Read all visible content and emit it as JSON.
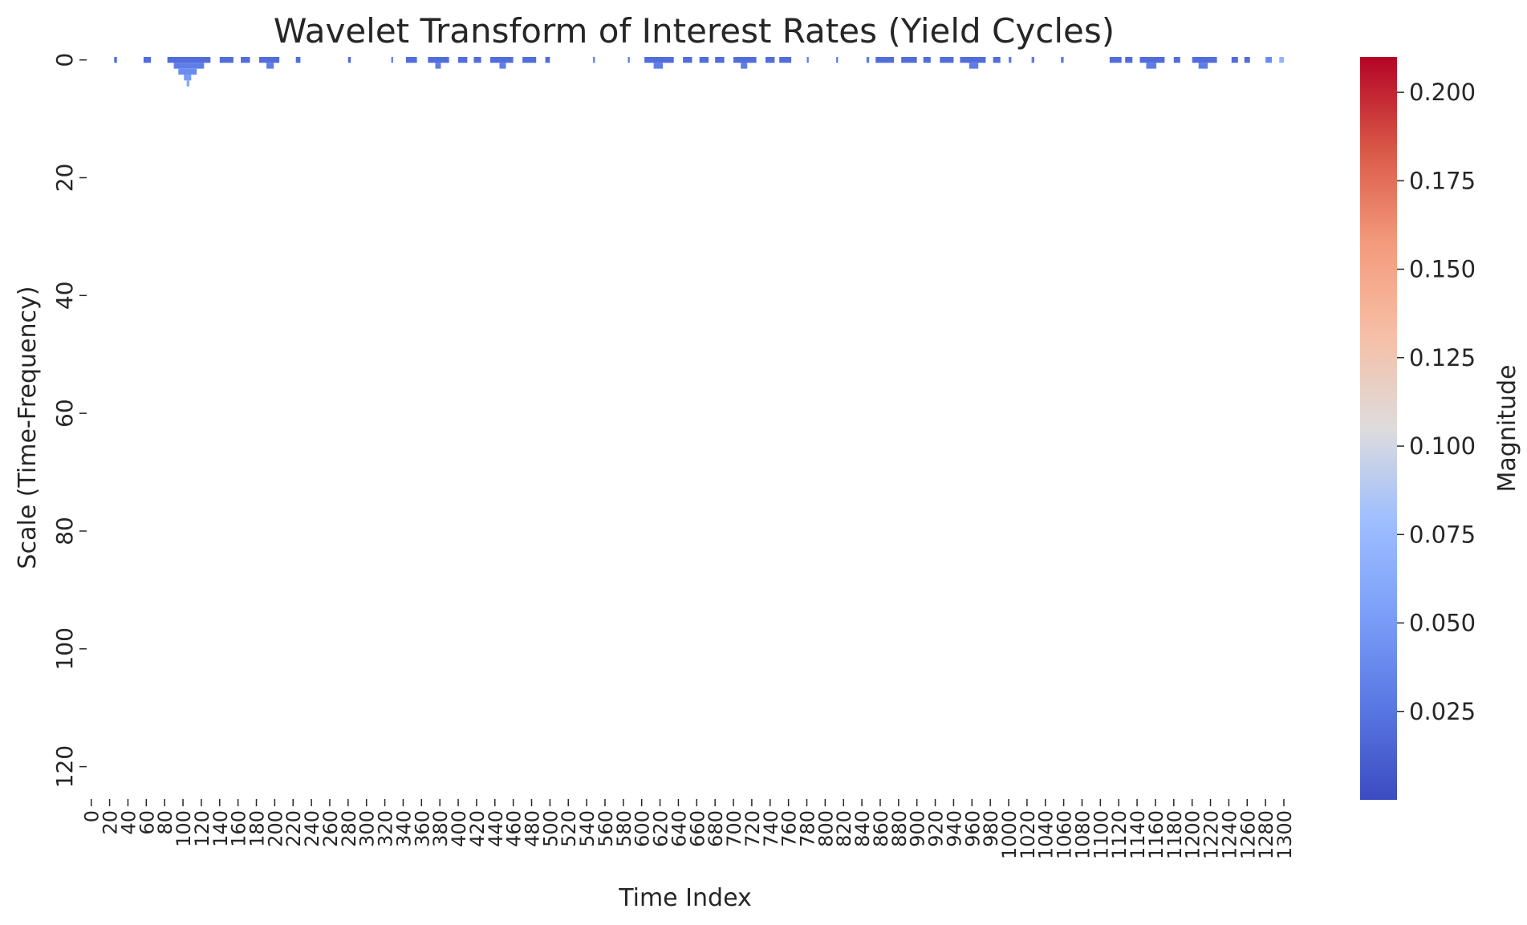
{
  "chart_data": {
    "type": "heatmap",
    "title": "Wavelet Transform of Interest Rates (Yield Cycles)",
    "xlabel": "Time Index",
    "ylabel": "Scale (Time-Frequency)",
    "colorbar_label": "Magnitude",
    "x_range": [
      0,
      1305
    ],
    "y_range": [
      0,
      126
    ],
    "x_tick_step": 20,
    "x_ticks": [
      0,
      20,
      40,
      60,
      80,
      100,
      120,
      140,
      160,
      180,
      200,
      220,
      240,
      260,
      280,
      300,
      320,
      340,
      360,
      380,
      400,
      420,
      440,
      460,
      480,
      500,
      520,
      540,
      560,
      580,
      600,
      620,
      640,
      660,
      680,
      700,
      720,
      740,
      760,
      780,
      800,
      820,
      840,
      860,
      880,
      900,
      920,
      940,
      960,
      980,
      1000,
      1020,
      1040,
      1060,
      1080,
      1100,
      1120,
      1140,
      1160,
      1180,
      1200,
      1220,
      1240,
      1260,
      1280,
      1300
    ],
    "y_ticks": [
      0,
      20,
      40,
      60,
      80,
      100,
      120
    ],
    "color_range": [
      0.0,
      0.21
    ],
    "colorbar_ticks": [
      0.025,
      0.05,
      0.075,
      0.1,
      0.125,
      0.15,
      0.175,
      0.2
    ],
    "colormap": "coolwarm",
    "cells": [
      {
        "x": [
          30,
          33
        ],
        "scale": 0,
        "value": 0.02
      },
      {
        "x": [
          62,
          70
        ],
        "scale": 0,
        "value": 0.02
      },
      {
        "x": [
          88,
          135
        ],
        "scale": 0,
        "value": 0.02
      },
      {
        "x": [
          95,
          128
        ],
        "scale": 1,
        "value": 0.03
      },
      {
        "x": [
          100,
          120
        ],
        "scale": 2,
        "value": 0.04
      },
      {
        "x": [
          106,
          114
        ],
        "scale": 3,
        "value": 0.05
      },
      {
        "x": [
          109,
          112
        ],
        "scale": 4,
        "value": 0.06
      },
      {
        "x": [
          145,
          160
        ],
        "scale": 0,
        "value": 0.02
      },
      {
        "x": [
          168,
          178
        ],
        "scale": 0,
        "value": 0.02
      },
      {
        "x": [
          188,
          210
        ],
        "scale": 0,
        "value": 0.02
      },
      {
        "x": [
          196,
          204
        ],
        "scale": 1,
        "value": 0.03
      },
      {
        "x": [
          228,
          233
        ],
        "scale": 0,
        "value": 0.02
      },
      {
        "x": [
          285,
          288
        ],
        "scale": 0,
        "value": 0.02
      },
      {
        "x": [
          332,
          334
        ],
        "scale": 0,
        "value": 0.03
      },
      {
        "x": [
          348,
          360
        ],
        "scale": 0,
        "value": 0.02
      },
      {
        "x": [
          372,
          395
        ],
        "scale": 0,
        "value": 0.02
      },
      {
        "x": [
          380,
          386
        ],
        "scale": 1,
        "value": 0.03
      },
      {
        "x": [
          405,
          415
        ],
        "scale": 0,
        "value": 0.02
      },
      {
        "x": [
          422,
          430
        ],
        "scale": 0,
        "value": 0.02
      },
      {
        "x": [
          440,
          465
        ],
        "scale": 0,
        "value": 0.02
      },
      {
        "x": [
          450,
          457
        ],
        "scale": 1,
        "value": 0.03
      },
      {
        "x": [
          475,
          490
        ],
        "scale": 0,
        "value": 0.02
      },
      {
        "x": [
          500,
          505
        ],
        "scale": 0,
        "value": 0.02
      },
      {
        "x": [
          552,
          554
        ],
        "scale": 0,
        "value": 0.03
      },
      {
        "x": [
          590,
          592
        ],
        "scale": 0,
        "value": 0.03
      },
      {
        "x": [
          608,
          640
        ],
        "scale": 0,
        "value": 0.02
      },
      {
        "x": [
          618,
          628
        ],
        "scale": 1,
        "value": 0.03
      },
      {
        "x": [
          650,
          660
        ],
        "scale": 0,
        "value": 0.02
      },
      {
        "x": [
          668,
          678
        ],
        "scale": 0,
        "value": 0.02
      },
      {
        "x": [
          685,
          695
        ],
        "scale": 0,
        "value": 0.02
      },
      {
        "x": [
          705,
          730
        ],
        "scale": 0,
        "value": 0.02
      },
      {
        "x": [
          713,
          720
        ],
        "scale": 1,
        "value": 0.03
      },
      {
        "x": [
          740,
          750
        ],
        "scale": 0,
        "value": 0.02
      },
      {
        "x": [
          755,
          768
        ],
        "scale": 0,
        "value": 0.02
      },
      {
        "x": [
          785,
          787
        ],
        "scale": 0,
        "value": 0.03
      },
      {
        "x": [
          817,
          819
        ],
        "scale": 0,
        "value": 0.03
      },
      {
        "x": [
          850,
          853
        ],
        "scale": 0,
        "value": 0.03
      },
      {
        "x": [
          860,
          880
        ],
        "scale": 0,
        "value": 0.02
      },
      {
        "x": [
          888,
          905
        ],
        "scale": 0,
        "value": 0.02
      },
      {
        "x": [
          912,
          920
        ],
        "scale": 0,
        "value": 0.02
      },
      {
        "x": [
          930,
          945
        ],
        "scale": 0,
        "value": 0.02
      },
      {
        "x": [
          952,
          980
        ],
        "scale": 0,
        "value": 0.02
      },
      {
        "x": [
          962,
          972
        ],
        "scale": 1,
        "value": 0.03
      },
      {
        "x": [
          988,
          996
        ],
        "scale": 0,
        "value": 0.02
      },
      {
        "x": [
          1005,
          1008
        ],
        "scale": 0,
        "value": 0.03
      },
      {
        "x": [
          1030,
          1033
        ],
        "scale": 0,
        "value": 0.03
      },
      {
        "x": [
          1062,
          1065
        ],
        "scale": 0,
        "value": 0.03
      },
      {
        "x": [
          1115,
          1128
        ],
        "scale": 0,
        "value": 0.02
      },
      {
        "x": [
          1132,
          1140
        ],
        "scale": 0,
        "value": 0.02
      },
      {
        "x": [
          1148,
          1175
        ],
        "scale": 0,
        "value": 0.02
      },
      {
        "x": [
          1155,
          1166
        ],
        "scale": 1,
        "value": 0.03
      },
      {
        "x": [
          1185,
          1192
        ],
        "scale": 0,
        "value": 0.02
      },
      {
        "x": [
          1205,
          1232
        ],
        "scale": 0,
        "value": 0.02
      },
      {
        "x": [
          1212,
          1222
        ],
        "scale": 1,
        "value": 0.03
      },
      {
        "x": [
          1248,
          1255
        ],
        "scale": 0,
        "value": 0.02
      },
      {
        "x": [
          1262,
          1268
        ],
        "scale": 0,
        "value": 0.02
      },
      {
        "x": [
          1285,
          1292
        ],
        "scale": 0,
        "value": 0.04
      },
      {
        "x": [
          1300,
          1305
        ],
        "scale": 0,
        "value": 0.07
      }
    ]
  }
}
